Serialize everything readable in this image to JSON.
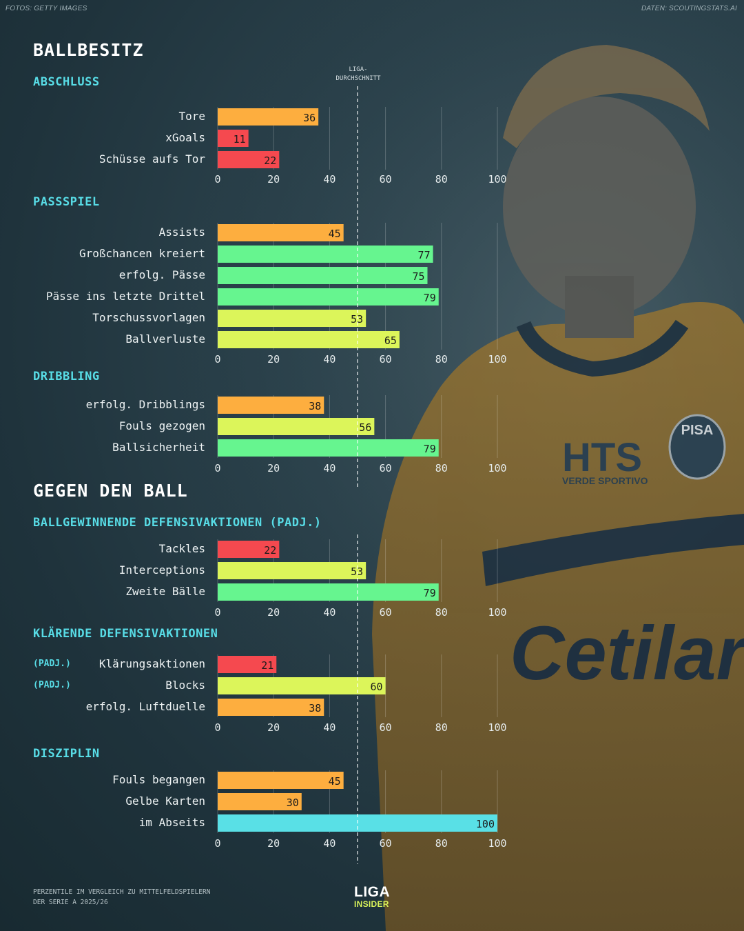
{
  "credits": {
    "left": "FOTOS: GETTY IMAGES",
    "right": "DATEN: SCOUTINGSTATS.AI"
  },
  "average_label": {
    "line1": "LIGA-",
    "line2": "DURCHSCHNITT"
  },
  "photo": {
    "sponsor_logo": "HTS",
    "sponsor_sub": "VERDE SPORTIVO",
    "club_badge": "PISA",
    "chest_sponsor": "Cetilar"
  },
  "footnote": {
    "line1": "PERZENTILE IM VERGLEICH ZU MITTELFELDSPIELERN",
    "line2": "DER SERIE A 2025/26"
  },
  "logo": {
    "line1": "LIGA",
    "line2": "INSIDER"
  },
  "colors": {
    "red": "#f5494f",
    "orange": "#fdae3f",
    "yellow": "#dcf55a",
    "green": "#66f58f",
    "cyan": "#59e0e6",
    "accent": "#58dce6"
  },
  "chart_data": {
    "type": "bar",
    "orientation": "horizontal",
    "xlim": [
      0,
      100
    ],
    "xticks": [
      0,
      20,
      40,
      60,
      80,
      100
    ],
    "reference_line": {
      "value": 50,
      "label": "LIGA-DURCHSCHNITT",
      "style": "dashed"
    },
    "grid": true,
    "groups": [
      {
        "group": "BALLBESITZ",
        "sections": [
          {
            "title": "ABSCHLUSS",
            "bars": [
              {
                "label": "Tore",
                "value": 36,
                "color": "orange"
              },
              {
                "label": "xGoals",
                "value": 11,
                "color": "red"
              },
              {
                "label": "Schüsse aufs Tor",
                "value": 22,
                "color": "red"
              }
            ]
          },
          {
            "title": "PASSSPIEL",
            "bars": [
              {
                "label": "Assists",
                "value": 45,
                "color": "orange"
              },
              {
                "label": "Großchancen kreiert",
                "value": 77,
                "color": "green"
              },
              {
                "label": "erfolg. Pässe",
                "value": 75,
                "color": "green"
              },
              {
                "label": "Pässe ins letzte Drittel",
                "value": 79,
                "color": "green"
              },
              {
                "label": "Torschussvorlagen",
                "value": 53,
                "color": "yellow"
              },
              {
                "label": "Ballverluste",
                "value": 65,
                "color": "yellow"
              }
            ]
          },
          {
            "title": "DRIBBLING",
            "bars": [
              {
                "label": "erfolg. Dribblings",
                "value": 38,
                "color": "orange"
              },
              {
                "label": "Fouls gezogen",
                "value": 56,
                "color": "yellow"
              },
              {
                "label": "Ballsicherheit",
                "value": 79,
                "color": "green"
              }
            ]
          }
        ]
      },
      {
        "group": "GEGEN DEN BALL",
        "sections": [
          {
            "title": "BALLGEWINNENDE DEFENSIVAKTIONEN (PADJ.)",
            "bars": [
              {
                "label": "Tackles",
                "value": 22,
                "color": "red"
              },
              {
                "label": "Interceptions",
                "value": 53,
                "color": "yellow"
              },
              {
                "label": "Zweite Bälle",
                "value": 79,
                "color": "green"
              }
            ]
          },
          {
            "title": "KLÄRENDE DEFENSIVAKTIONEN",
            "bars": [
              {
                "label": "Klärungsaktionen",
                "tag": "(PADJ.)",
                "value": 21,
                "color": "red"
              },
              {
                "label": "Blocks",
                "tag": "(PADJ.)",
                "value": 60,
                "color": "yellow"
              },
              {
                "label": "erfolg. Luftduelle",
                "value": 38,
                "color": "orange"
              }
            ]
          },
          {
            "title": "DISZIPLIN",
            "bars": [
              {
                "label": "Fouls begangen",
                "value": 45,
                "color": "orange"
              },
              {
                "label": "Gelbe Karten",
                "value": 30,
                "color": "orange"
              },
              {
                "label": "im Abseits",
                "value": 100,
                "color": "cyan"
              }
            ]
          }
        ]
      }
    ]
  }
}
